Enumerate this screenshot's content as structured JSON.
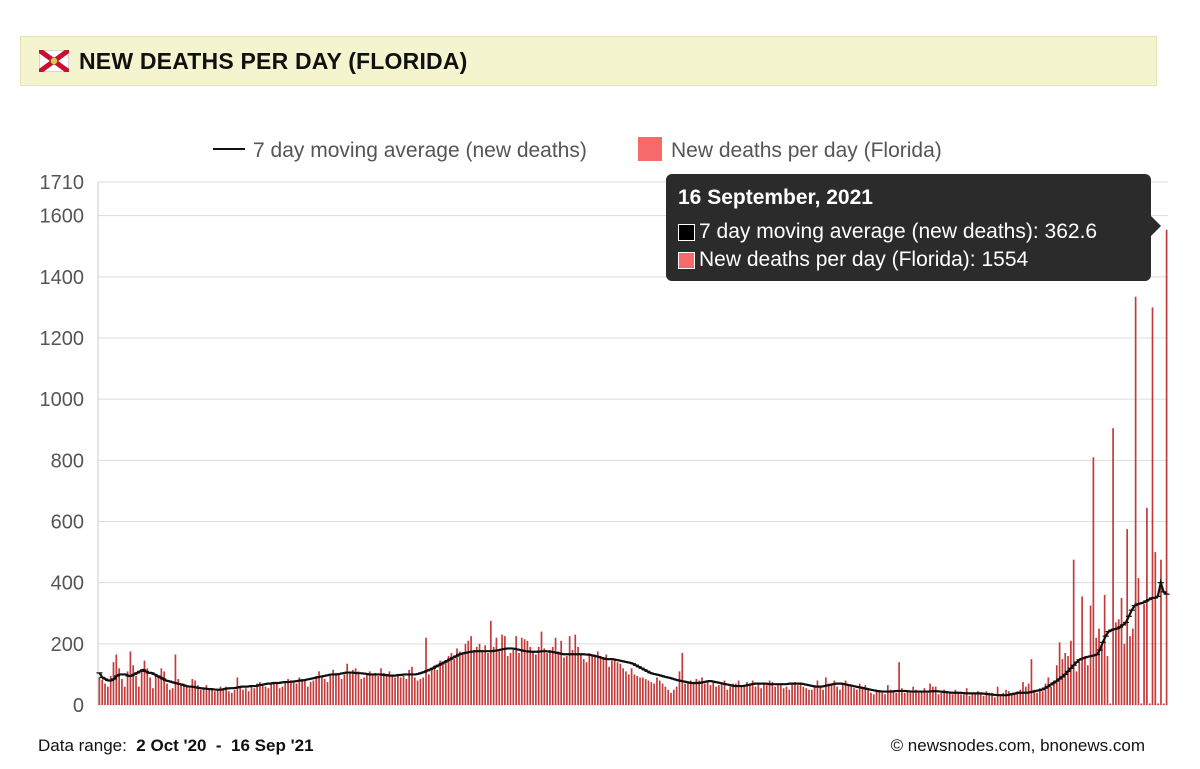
{
  "header": {
    "title": "NEW DEATHS PER DAY (FLORIDA)",
    "flag_icon": "florida-flag-icon"
  },
  "colors": {
    "bar": "#c23b3b",
    "legend_bar": "#f76a6a",
    "avg_line": "#111111",
    "tooltip_bg": "#2b2b2b"
  },
  "legend": {
    "avg_label": "7 day moving average (new deaths)",
    "bar_label": "New deaths per day (Florida)"
  },
  "chart_data": {
    "type": "bar",
    "title": "NEW DEATHS PER DAY (FLORIDA)",
    "ylim": [
      0,
      1710
    ],
    "yticks": [
      "1710",
      "1600",
      "1400",
      "1200",
      "1000",
      "800",
      "600",
      "400",
      "200",
      "0"
    ],
    "x_range": [
      "2 Oct '20",
      "16 Sep '21"
    ],
    "series": [
      {
        "name": "New deaths per day (Florida)",
        "kind": "bar",
        "values": [
          90,
          82,
          70,
          60,
          95,
          140,
          165,
          120,
          85,
          60,
          110,
          175,
          130,
          95,
          60,
          115,
          145,
          120,
          90,
          55,
          100,
          95,
          120,
          110,
          70,
          50,
          55,
          165,
          85,
          70,
          70,
          60,
          55,
          85,
          80,
          65,
          50,
          55,
          65,
          55,
          50,
          45,
          50,
          60,
          55,
          60,
          45,
          40,
          50,
          90,
          60,
          50,
          55,
          45,
          60,
          55,
          70,
          75,
          70,
          60,
          55,
          70,
          75,
          75,
          55,
          60,
          75,
          85,
          80,
          75,
          70,
          90,
          85,
          80,
          60,
          75,
          80,
          95,
          110,
          90,
          85,
          75,
          95,
          115,
          105,
          100,
          85,
          100,
          135,
          105,
          115,
          120,
          110,
          85,
          90,
          100,
          110,
          100,
          105,
          95,
          120,
          105,
          95,
          110,
          100,
          90,
          95,
          90,
          95,
          85,
          115,
          125,
          90,
          80,
          85,
          90,
          220,
          100,
          120,
          130,
          115,
          145,
          135,
          140,
          160,
          170,
          150,
          185,
          175,
          165,
          200,
          210,
          225,
          180,
          190,
          200,
          180,
          195,
          170,
          275,
          190,
          220,
          175,
          230,
          225,
          160,
          170,
          180,
          225,
          170,
          220,
          215,
          210,
          190,
          175,
          165,
          190,
          240,
          185,
          170,
          180,
          190,
          220,
          175,
          210,
          155,
          160,
          225,
          180,
          230,
          190,
          165,
          150,
          140,
          170,
          160,
          165,
          175,
          155,
          150,
          165,
          125,
          145,
          150,
          140,
          135,
          120,
          110,
          100,
          120,
          100,
          95,
          90,
          90,
          85,
          80,
          75,
          70,
          90,
          80,
          70,
          60,
          50,
          40,
          50,
          60,
          110,
          170,
          70,
          75,
          80,
          70,
          85,
          80,
          90,
          70,
          75,
          65,
          80,
          60,
          65,
          70,
          80,
          50,
          60,
          70,
          70,
          80,
          65,
          60,
          75,
          70,
          80,
          60,
          70,
          55,
          70,
          65,
          80,
          75,
          60,
          70,
          65,
          55,
          60,
          50,
          70,
          75,
          65,
          70,
          60,
          55,
          50,
          50,
          65,
          80,
          60,
          50,
          90,
          70,
          65,
          80,
          60,
          50,
          70,
          80,
          65,
          60,
          55,
          50,
          70,
          60,
          65,
          55,
          40,
          35,
          50,
          45,
          40,
          35,
          65,
          50,
          45,
          40,
          140,
          55,
          40,
          45,
          40,
          60,
          50,
          40,
          45,
          55,
          40,
          70,
          60,
          60,
          35,
          40,
          50,
          45,
          40,
          35,
          50,
          40,
          35,
          35,
          55,
          30,
          40,
          35,
          45,
          40,
          30,
          45,
          40,
          40,
          25,
          60,
          35,
          40,
          50,
          45,
          40,
          35,
          45,
          50,
          75,
          60,
          70,
          150,
          50,
          40,
          55,
          45,
          70,
          90,
          60,
          80,
          130,
          205,
          150,
          170,
          160,
          210,
          475,
          110,
          140,
          355,
          160,
          130,
          325,
          810,
          220,
          250,
          200,
          360,
          160,
          5,
          905,
          270,
          280,
          350,
          200,
          575,
          225,
          250,
          1335,
          415,
          5,
          330,
          645,
          5,
          1300,
          500,
          5,
          475,
          5,
          1554
        ]
      },
      {
        "name": "7 day moving average (new deaths)",
        "kind": "line",
        "values": [
          105,
          90,
          85,
          80,
          80,
          85,
          95,
          100,
          100,
          100,
          95,
          95,
          100,
          105,
          110,
          115,
          110,
          105,
          105,
          100,
          95,
          90,
          85,
          80,
          78,
          75,
          72,
          70,
          68,
          65,
          62,
          60,
          60,
          58,
          56,
          55,
          54,
          53,
          52,
          52,
          50,
          50,
          50,
          52,
          54,
          55,
          55,
          56,
          58,
          60,
          60,
          60,
          62,
          62,
          62,
          65,
          66,
          68,
          70,
          70,
          72,
          72,
          72,
          74,
          75,
          75,
          76,
          77,
          78,
          80,
          80,
          82,
          84,
          86,
          88,
          90,
          92,
          94,
          96,
          98,
          100,
          100,
          100,
          102,
          104,
          106,
          106,
          106,
          105,
          104,
          104,
          103,
          102,
          100,
          100,
          100,
          100,
          100,
          98,
          98,
          96,
          96,
          96,
          98,
          98,
          100,
          100,
          100,
          100,
          100,
          102,
          105,
          108,
          112,
          116,
          120,
          125,
          130,
          135,
          140,
          145,
          150,
          155,
          160,
          165,
          168,
          170,
          172,
          174,
          175,
          176,
          176,
          176,
          176,
          176,
          176,
          177,
          178,
          180,
          182,
          184,
          185,
          185,
          184,
          182,
          180,
          178,
          176,
          175,
          174,
          174,
          174,
          175,
          176,
          176,
          175,
          174,
          172,
          170,
          168,
          166,
          166,
          166,
          166,
          166,
          166,
          166,
          166,
          165,
          164,
          162,
          160,
          158,
          155,
          152,
          150,
          150,
          150,
          148,
          146,
          144,
          142,
          140,
          138,
          135,
          130,
          125,
          120,
          115,
          110,
          105,
          102,
          100,
          98,
          95,
          92,
          90,
          88,
          85,
          82,
          80,
          78,
          76,
          74,
          72,
          72,
          72,
          72,
          74,
          76,
          78,
          78,
          76,
          74,
          72,
          70,
          68,
          66,
          64,
          62,
          62,
          62,
          62,
          64,
          66,
          68,
          70,
          70,
          70,
          70,
          70,
          68,
          68,
          68,
          68,
          68,
          68,
          68,
          70,
          70,
          70,
          70,
          70,
          68,
          66,
          64,
          62,
          60,
          60,
          60,
          62,
          64,
          66,
          68,
          70,
          70,
          70,
          68,
          66,
          64,
          62,
          60,
          58,
          56,
          54,
          52,
          50,
          48,
          46,
          45,
          44,
          44,
          44,
          44,
          45,
          46,
          46,
          46,
          46,
          45,
          44,
          44,
          44,
          44,
          44,
          44,
          44,
          45,
          45,
          45,
          44,
          43,
          42,
          41,
          40,
          40,
          40,
          40,
          39,
          38,
          38,
          38,
          38,
          38,
          38,
          37,
          36,
          35,
          34,
          33,
          32,
          32,
          32,
          32,
          34,
          36,
          38,
          40,
          40,
          40,
          40,
          42,
          44,
          46,
          48,
          50,
          55,
          60,
          66,
          72,
          78,
          85,
          92,
          100,
          110,
          120,
          130,
          140,
          148,
          152,
          155,
          158,
          160,
          162,
          165,
          180,
          205,
          225,
          240,
          245,
          248,
          250,
          255,
          262,
          270,
          290,
          310,
          325,
          330,
          332,
          335,
          340,
          345,
          350,
          350,
          355,
          400,
          370,
          362.6
        ]
      }
    ],
    "tooltip": {
      "date": "16 September, 2021",
      "rows": [
        {
          "label": "7 day moving average (new deaths): 362.6"
        },
        {
          "label": "New deaths per day (Florida): 1554"
        }
      ]
    }
  },
  "footer": {
    "data_range_label": "Data range:",
    "data_range_value": "2 Oct '20  -  16 Sep '21",
    "credit": "© newsnodes.com, bnonews.com"
  }
}
